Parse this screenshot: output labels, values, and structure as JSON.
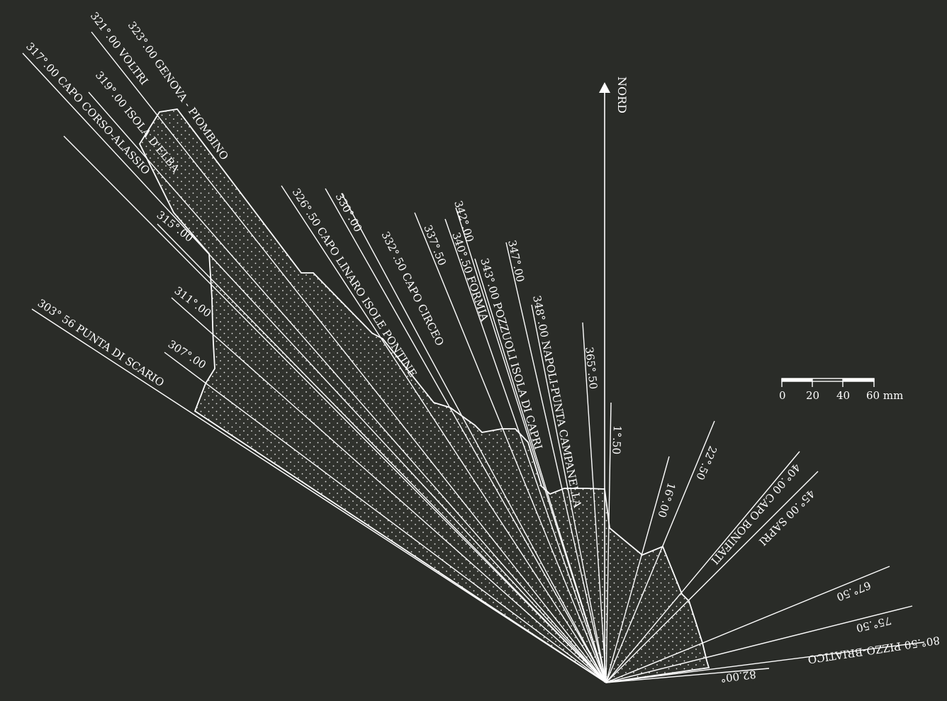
{
  "north": {
    "label": "NORD"
  },
  "scale": {
    "ticks": [
      "0",
      "20",
      "40",
      "60 mm"
    ]
  },
  "colors": {
    "background": "#2a2c28",
    "lines": "#ffffff",
    "fill": "#30322d"
  },
  "rays": [
    {
      "label": "303° 56  PUNTA DI SCARIO"
    },
    {
      "label": "307°.00"
    },
    {
      "label": "311°.00"
    },
    {
      "label": "315°.00"
    },
    {
      "label": "317°.00 CAPO CORSO-ALASSIO"
    },
    {
      "label": "319°.00  ISOLA D'ELBA"
    },
    {
      "label": "321°.00  VOLTRI"
    },
    {
      "label": "323°.00  GENOVA - PIOMBINO"
    },
    {
      "label": "326°.50  CAPO LINARO  ISOLE PONTINE"
    },
    {
      "label": "330°.00"
    },
    {
      "label": "332°.50  CAPO CIRCEO"
    },
    {
      "label": "337°.50"
    },
    {
      "label": "342°.00"
    },
    {
      "label": "340°.50  FORMIA"
    },
    {
      "label": "343°.00 POZZUOLI  ISOLA DI CAPRI"
    },
    {
      "label": "347°.00"
    },
    {
      "label": "348°.00 NAPOLI-PUNTA CAMPANELLA"
    },
    {
      "label": "365°.50"
    },
    {
      "label": "1°.50"
    },
    {
      "label": "16°.00"
    },
    {
      "label": "22°.50"
    },
    {
      "label": "40°.00  CAPO BONIFATI"
    },
    {
      "label": "45°.00 SAPRI"
    },
    {
      "label": "67°.50"
    },
    {
      "label": "75°.50"
    },
    {
      "label": "80°.50 PIZZO-BRIATICO"
    },
    {
      "label": "82.00°"
    }
  ]
}
